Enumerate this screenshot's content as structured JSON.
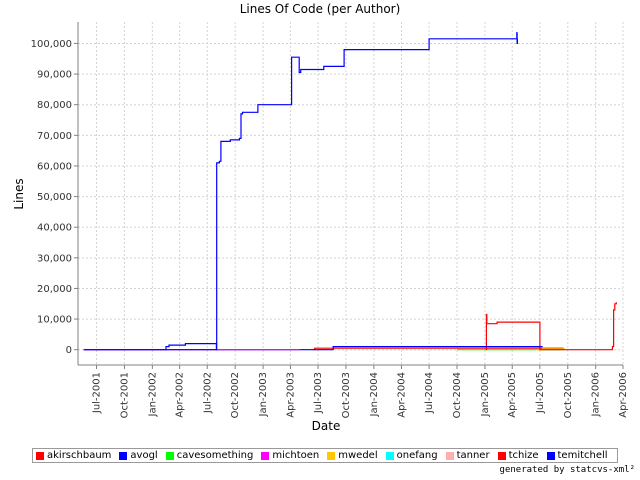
{
  "chart_data": {
    "type": "line",
    "title": "Lines Of Code (per Author)",
    "xlabel": "Date",
    "ylabel": "Lines",
    "ylim": [
      -5000,
      107000
    ],
    "xlim": [
      "2001-05-01",
      "2006-04-01"
    ],
    "grid": true,
    "legend": "bottom",
    "y_ticks": [
      0,
      10000,
      20000,
      30000,
      40000,
      50000,
      60000,
      70000,
      80000,
      90000,
      100000
    ],
    "y_tick_labels": [
      "0",
      "10,000",
      "20,000",
      "30,000",
      "40,000",
      "50,000",
      "60,000",
      "70,000",
      "80,000",
      "90,000",
      "100,000"
    ],
    "x_ticks": [
      "2001-07-01",
      "2001-10-01",
      "2002-01-01",
      "2002-04-01",
      "2002-07-01",
      "2002-10-01",
      "2003-01-01",
      "2003-04-01",
      "2003-07-01",
      "2003-10-01",
      "2004-01-01",
      "2004-04-01",
      "2004-07-01",
      "2004-10-01",
      "2005-01-01",
      "2005-04-01",
      "2005-07-01",
      "2005-10-01",
      "2006-01-01",
      "2006-04-01"
    ],
    "x_tick_labels": [
      "Jul-2001",
      "Oct-2001",
      "Jan-2002",
      "Apr-2002",
      "Jul-2002",
      "Oct-2002",
      "Jan-2003",
      "Apr-2003",
      "Jul-2003",
      "Oct-2003",
      "Jan-2004",
      "Apr-2004",
      "Jul-2004",
      "Oct-2004",
      "Jan-2005",
      "Apr-2005",
      "Jul-2005",
      "Oct-2005",
      "Jan-2006",
      "Apr-2006"
    ],
    "series": [
      {
        "name": "akirschbaum",
        "color": "#ff0000",
        "points": [
          [
            "2003-06-15",
            0
          ],
          [
            "2003-06-20",
            500
          ],
          [
            "2004-01-01",
            500
          ],
          [
            "2005-09-10",
            500
          ],
          [
            "2005-09-15",
            0
          ]
        ]
      },
      {
        "name": "avogl",
        "color": "#0000ff",
        "points": [
          [
            "2001-05-20",
            0
          ],
          [
            "2002-02-10",
            0
          ],
          [
            "2002-02-15",
            1000
          ],
          [
            "2002-02-25",
            1500
          ],
          [
            "2002-04-15",
            1500
          ],
          [
            "2002-04-20",
            2000
          ],
          [
            "2002-07-30",
            2000
          ],
          [
            "2002-07-31",
            0
          ],
          [
            "2003-05-01",
            0
          ]
        ]
      },
      {
        "name": "cavesomething",
        "color": "#00ff00",
        "points": [
          [
            "2004-10-01",
            0
          ],
          [
            "2005-09-20",
            0
          ]
        ]
      },
      {
        "name": "michtoen",
        "color": "#ff00ff",
        "points": [
          [
            "2001-05-20",
            0
          ],
          [
            "2003-05-01",
            0
          ]
        ]
      },
      {
        "name": "mwedel",
        "color": "#ffc800",
        "points": [
          [
            "2005-06-20",
            0
          ],
          [
            "2005-07-10",
            300
          ],
          [
            "2005-09-15",
            300
          ],
          [
            "2005-09-20",
            0
          ]
        ]
      },
      {
        "name": "onefang",
        "color": "#00ffff",
        "points": []
      },
      {
        "name": "tanner",
        "color": "#ffafaf",
        "points": []
      },
      {
        "name": "tchize",
        "color": "#ff0000",
        "points": [
          [
            "2005-01-05",
            0
          ],
          [
            "2005-01-06",
            11500
          ],
          [
            "2005-01-07",
            8500
          ],
          [
            "2005-02-01",
            8500
          ],
          [
            "2005-02-10",
            9000
          ],
          [
            "2005-06-30",
            9000
          ],
          [
            "2005-07-01",
            0
          ],
          [
            "2006-02-20",
            0
          ],
          [
            "2006-02-25",
            1000
          ],
          [
            "2006-03-01",
            13000
          ],
          [
            "2006-03-05",
            15000
          ],
          [
            "2006-03-10",
            15500
          ]
        ]
      },
      {
        "name": "temitchell",
        "color": "#0000ff",
        "points": [
          [
            "2001-05-20",
            0
          ],
          [
            "2002-07-31",
            0
          ],
          [
            "2002-08-01",
            61000
          ],
          [
            "2002-08-10",
            61500
          ],
          [
            "2002-08-15",
            68000
          ],
          [
            "2002-09-15",
            68500
          ],
          [
            "2002-10-15",
            69000
          ],
          [
            "2002-10-20",
            77000
          ],
          [
            "2002-10-25",
            77500
          ],
          [
            "2002-12-10",
            77500
          ],
          [
            "2002-12-15",
            80000
          ],
          [
            "2003-04-01",
            80000
          ],
          [
            "2003-04-05",
            95500
          ],
          [
            "2003-04-25",
            95500
          ],
          [
            "2003-04-30",
            90500
          ],
          [
            "2003-05-05",
            91500
          ],
          [
            "2003-07-15",
            91500
          ],
          [
            "2003-07-20",
            92500
          ],
          [
            "2003-09-20",
            92500
          ],
          [
            "2003-09-25",
            98000
          ],
          [
            "2004-06-25",
            98000
          ],
          [
            "2004-07-01",
            101500
          ],
          [
            "2005-04-15",
            101500
          ],
          [
            "2005-04-16",
            103500
          ],
          [
            "2005-04-17",
            100000
          ],
          [
            "2005-04-18",
            101500
          ]
        ]
      },
      {
        "name": "",
        "color": "#0000ff",
        "points": [
          [
            "2003-05-01",
            0
          ],
          [
            "2003-08-15",
            0
          ],
          [
            "2003-08-20",
            1000
          ],
          [
            "2005-07-10",
            1000
          ]
        ]
      }
    ]
  },
  "footer": "generated by statcvs-xml²"
}
